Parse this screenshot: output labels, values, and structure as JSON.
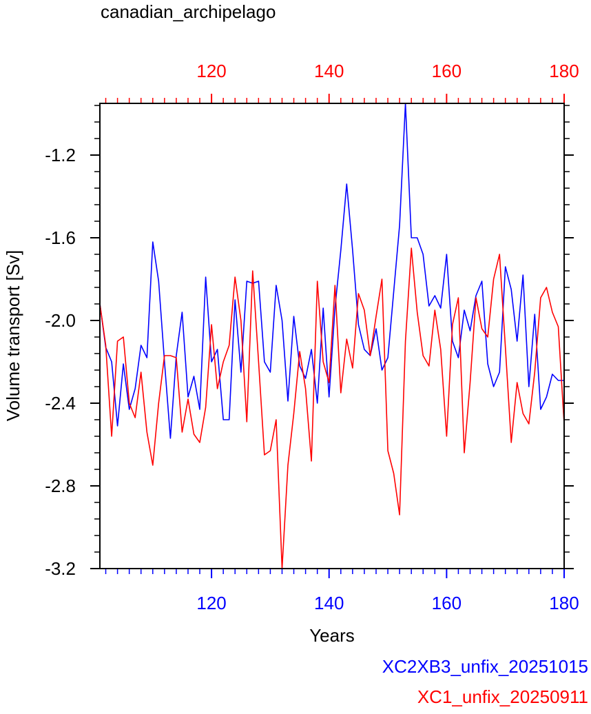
{
  "chart_data": {
    "type": "line",
    "title": "canadian_archipelago",
    "xlabel": "Years",
    "ylabel": "Volume transport [Sv]",
    "xlim": [
      101,
      180
    ],
    "ylim": [
      -3.2,
      -0.95
    ],
    "yticks": [
      -1.2,
      -1.6,
      -2.0,
      -2.4,
      -2.8,
      -3.2
    ],
    "ytick_labels": [
      "-1.2",
      "-1.6",
      "-2.0",
      "-2.4",
      "-2.8",
      "-3.2"
    ],
    "xticks": [
      120,
      140,
      160,
      180
    ],
    "xtick_labels_bottom": [
      "120",
      "140",
      "160",
      "180"
    ],
    "xtick_labels_top": [
      "120",
      "140",
      "160",
      "180"
    ],
    "top_axis_color": "#ff0000",
    "bottom_axis_color": "#0000ff",
    "x": [
      101,
      102,
      103,
      104,
      105,
      106,
      107,
      108,
      109,
      110,
      111,
      112,
      113,
      114,
      115,
      116,
      117,
      118,
      119,
      120,
      121,
      122,
      123,
      124,
      125,
      126,
      127,
      128,
      129,
      130,
      131,
      132,
      133,
      134,
      135,
      136,
      137,
      138,
      139,
      140,
      141,
      142,
      143,
      144,
      145,
      146,
      147,
      148,
      149,
      150,
      151,
      152,
      153,
      154,
      155,
      156,
      157,
      158,
      159,
      160,
      161,
      162,
      163,
      164,
      165,
      166,
      167,
      168,
      169,
      170,
      171,
      172,
      173,
      174,
      175,
      176,
      177,
      178,
      179,
      180
    ],
    "series": [
      {
        "name": "XC2XB3_unfix_20251015",
        "color": "#0000ff",
        "values": [
          -1.92,
          -2.13,
          -2.2,
          -2.51,
          -2.21,
          -2.43,
          -2.33,
          -2.12,
          -2.18,
          -1.62,
          -1.81,
          -2.2,
          -2.57,
          -2.17,
          -1.96,
          -2.37,
          -2.27,
          -2.43,
          -1.79,
          -2.2,
          -2.14,
          -2.48,
          -2.48,
          -1.9,
          -2.25,
          -1.81,
          -1.82,
          -1.81,
          -2.2,
          -2.25,
          -1.83,
          -2.0,
          -2.39,
          -1.98,
          -2.22,
          -2.28,
          -2.14,
          -2.4,
          -1.94,
          -2.37,
          -1.94,
          -1.66,
          -1.34,
          -1.66,
          -2.02,
          -2.14,
          -2.17,
          -2.04,
          -2.24,
          -2.18,
          -1.86,
          -1.54,
          -0.95,
          -1.6,
          -1.6,
          -1.68,
          -1.93,
          -1.88,
          -1.94,
          -1.68,
          -2.1,
          -2.18,
          -1.95,
          -2.05,
          -1.88,
          -1.81,
          -2.21,
          -2.32,
          -2.25,
          -1.74,
          -1.85,
          -2.1,
          -1.78,
          -2.32,
          -1.97,
          -2.43,
          -2.37,
          -2.26,
          -2.29,
          -2.29
        ]
      },
      {
        "name": "XC1_unfix_20250911",
        "color": "#ff0000",
        "values": [
          -1.92,
          -2.12,
          -2.56,
          -2.1,
          -2.08,
          -2.4,
          -2.47,
          -2.25,
          -2.54,
          -2.7,
          -2.4,
          -2.17,
          -2.17,
          -2.18,
          -2.54,
          -2.38,
          -2.55,
          -2.59,
          -2.42,
          -2.02,
          -2.33,
          -2.2,
          -2.12,
          -1.79,
          -2.0,
          -2.49,
          -1.76,
          -2.2,
          -2.65,
          -2.63,
          -2.48,
          -3.2,
          -2.7,
          -2.45,
          -2.15,
          -2.33,
          -2.68,
          -1.81,
          -2.2,
          -2.3,
          -1.83,
          -2.35,
          -2.09,
          -2.23,
          -1.87,
          -1.95,
          -2.17,
          -1.98,
          -1.8,
          -2.63,
          -2.74,
          -2.94,
          -2.1,
          -1.65,
          -1.96,
          -2.17,
          -2.22,
          -1.95,
          -2.14,
          -2.56,
          -2.02,
          -1.89,
          -2.64,
          -2.3,
          -1.89,
          -2.04,
          -2.08,
          -1.8,
          -1.68,
          -2.13,
          -2.59,
          -2.3,
          -2.45,
          -2.5,
          -2.25,
          -1.89,
          -1.84,
          -1.96,
          -2.03,
          -2.5
        ]
      }
    ]
  }
}
